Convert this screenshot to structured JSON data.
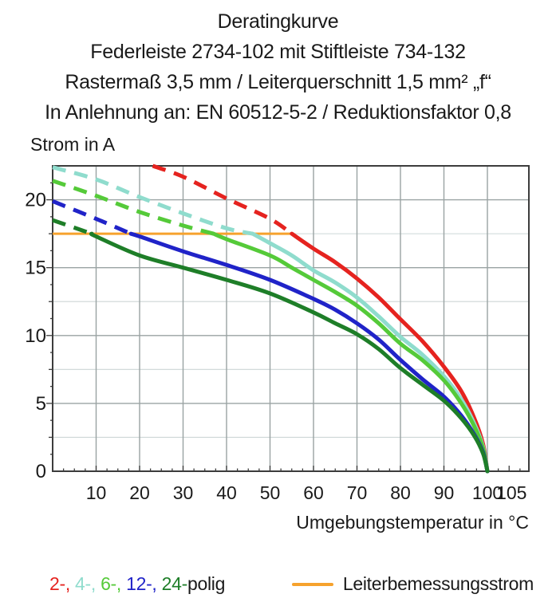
{
  "header": {
    "lines": [
      "Deratingkurve",
      "Federleiste 2734-102 mit Stiftleiste 734-132",
      "Rastermaß 3,5 mm / Leiterquerschnitt 1,5 mm² „f“",
      "In Anlehnung an: EN 60512-5-2 / Reduktionsfaktor 0,8"
    ]
  },
  "legend": {
    "pole_items": [
      {
        "label": "2-, ",
        "color": "#e5231f"
      },
      {
        "label": "4-, ",
        "color": "#8fdccd"
      },
      {
        "label": "6-, ",
        "color": "#55ca39"
      },
      {
        "label": "12-, ",
        "color": "#2023c8"
      },
      {
        "label": "24-",
        "color": "#1e7e28"
      },
      {
        "label": "polig",
        "color": "#1a1a1a"
      }
    ],
    "reference_label": "Leiterbemessungsstrom"
  },
  "chart_data": {
    "type": "line",
    "x_axis": {
      "label": "Umgebungstemperatur in °C",
      "unit": "°C",
      "ticks": [
        10,
        20,
        30,
        40,
        50,
        60,
        70,
        80,
        90,
        100,
        105
      ],
      "range": [
        0,
        109.5
      ],
      "minor_tick_step": 2.5
    },
    "y_axis": {
      "label": "Strom in A",
      "unit": "A",
      "ticks": [
        0,
        5,
        10,
        15,
        20
      ],
      "range": [
        0,
        22.5
      ],
      "minor_grid_step": 2.5
    },
    "grid": "on",
    "reference_line": {
      "label": "Leiterbemessungsstrom",
      "value": 17.5,
      "x_start": 0,
      "x_end": 55,
      "color": "#f6a22d"
    },
    "series": [
      {
        "name": "2-polig",
        "color": "#e5231f",
        "style": "dashed-above-reference-then-solid",
        "dash_until_temp": 55,
        "points": [
          [
            23,
            22.5
          ],
          [
            30,
            21.7
          ],
          [
            40,
            20.1
          ],
          [
            50,
            18.6
          ],
          [
            55,
            17.5
          ],
          [
            60,
            16.4
          ],
          [
            65,
            15.4
          ],
          [
            70,
            14.2
          ],
          [
            75,
            12.8
          ],
          [
            80,
            11.2
          ],
          [
            85,
            9.6
          ],
          [
            90,
            7.7
          ],
          [
            94,
            5.9
          ],
          [
            97,
            3.9
          ],
          [
            99,
            2.0
          ],
          [
            100,
            0
          ]
        ]
      },
      {
        "name": "4-polig",
        "color": "#8fdccd",
        "style": "dashed-above-reference-then-solid",
        "dash_until_temp": 46,
        "points": [
          [
            0,
            22.4
          ],
          [
            10,
            21.5
          ],
          [
            20,
            20.2
          ],
          [
            30,
            19.0
          ],
          [
            40,
            17.9
          ],
          [
            46,
            17.5
          ],
          [
            50,
            16.8
          ],
          [
            55,
            15.9
          ],
          [
            60,
            14.8
          ],
          [
            65,
            13.9
          ],
          [
            70,
            12.8
          ],
          [
            75,
            11.4
          ],
          [
            80,
            9.9
          ],
          [
            85,
            8.6
          ],
          [
            90,
            7.0
          ],
          [
            94,
            5.3
          ],
          [
            97,
            3.5
          ],
          [
            99,
            1.8
          ],
          [
            100,
            0
          ]
        ]
      },
      {
        "name": "6-polig",
        "color": "#55ca39",
        "style": "dashed-above-reference-then-solid",
        "dash_until_temp": 37,
        "points": [
          [
            0,
            21.4
          ],
          [
            10,
            20.3
          ],
          [
            20,
            19.1
          ],
          [
            30,
            18.1
          ],
          [
            37,
            17.5
          ],
          [
            40,
            17.1
          ],
          [
            50,
            15.9
          ],
          [
            55,
            15.0
          ],
          [
            60,
            14.1
          ],
          [
            65,
            13.2
          ],
          [
            70,
            12.2
          ],
          [
            75,
            10.9
          ],
          [
            80,
            9.4
          ],
          [
            85,
            8.2
          ],
          [
            90,
            6.7
          ],
          [
            94,
            5.0
          ],
          [
            97,
            3.3
          ],
          [
            99,
            1.7
          ],
          [
            100,
            0
          ]
        ]
      },
      {
        "name": "12-polig",
        "color": "#2023c8",
        "style": "dashed-above-reference-then-solid",
        "dash_until_temp": 18,
        "points": [
          [
            0,
            19.9
          ],
          [
            10,
            18.6
          ],
          [
            18,
            17.5
          ],
          [
            20,
            17.3
          ],
          [
            30,
            16.2
          ],
          [
            40,
            15.2
          ],
          [
            50,
            14.1
          ],
          [
            60,
            12.7
          ],
          [
            65,
            11.9
          ],
          [
            70,
            10.9
          ],
          [
            75,
            9.7
          ],
          [
            80,
            8.2
          ],
          [
            85,
            6.8
          ],
          [
            90,
            5.5
          ],
          [
            94,
            4.1
          ],
          [
            97,
            2.7
          ],
          [
            99,
            1.4
          ],
          [
            100,
            0
          ]
        ]
      },
      {
        "name": "24-polig",
        "color": "#1e7e28",
        "style": "dashed-above-reference-then-solid",
        "dash_until_temp": 9,
        "points": [
          [
            0,
            18.5
          ],
          [
            9,
            17.5
          ],
          [
            10,
            17.3
          ],
          [
            20,
            15.9
          ],
          [
            30,
            15.0
          ],
          [
            40,
            14.1
          ],
          [
            50,
            13.1
          ],
          [
            60,
            11.7
          ],
          [
            65,
            10.9
          ],
          [
            70,
            10.1
          ],
          [
            75,
            9.0
          ],
          [
            80,
            7.6
          ],
          [
            85,
            6.4
          ],
          [
            90,
            5.2
          ],
          [
            94,
            3.9
          ],
          [
            97,
            2.6
          ],
          [
            99,
            1.3
          ],
          [
            100,
            0
          ]
        ]
      }
    ],
    "colors": {
      "grid_major": "#9aa3a3",
      "grid_minor": "#cdd6d6",
      "frame": "#3c3c3c"
    }
  }
}
